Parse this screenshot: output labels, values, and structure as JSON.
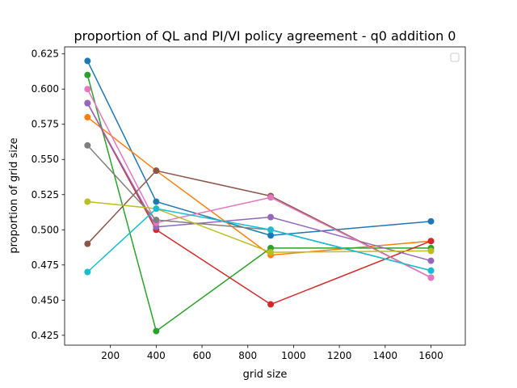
{
  "chart_data": {
    "type": "line",
    "title": "proportion of QL and PI/VI policy agreement - q0 addition 0",
    "xlabel": "grid size",
    "ylabel": "proportion of grid size",
    "x": [
      100,
      400,
      900,
      1600
    ],
    "xlim": [
      0,
      1750
    ],
    "ylim": [
      0.418,
      0.63
    ],
    "xticks": [
      200,
      400,
      600,
      800,
      1000,
      1200,
      1400,
      1600
    ],
    "xtick_labels": [
      "200",
      "400",
      "600",
      "800",
      "1000",
      "1200",
      "1400",
      "1600"
    ],
    "yticks": [
      0.425,
      0.45,
      0.475,
      0.5,
      0.525,
      0.55,
      0.575,
      0.6,
      0.625
    ],
    "ytick_labels": [
      "0.425",
      "0.450",
      "0.475",
      "0.500",
      "0.525",
      "0.550",
      "0.575",
      "0.600",
      "0.625"
    ],
    "grid": false,
    "legend": {
      "placement": "top-right",
      "entries": []
    },
    "series": [
      {
        "color": "#1f77b4",
        "values": [
          0.62,
          0.52,
          0.496,
          0.506
        ]
      },
      {
        "color": "#ff7f0e",
        "values": [
          0.58,
          0.542,
          0.482,
          0.492
        ]
      },
      {
        "color": "#2ca02c",
        "values": [
          0.61,
          0.428,
          0.487,
          0.487
        ]
      },
      {
        "color": "#d62728",
        "values": [
          0.59,
          0.5,
          0.447,
          0.492
        ]
      },
      {
        "color": "#9467bd",
        "values": [
          0.59,
          0.502,
          0.509,
          0.478
        ]
      },
      {
        "color": "#8c564b",
        "values": [
          0.49,
          0.542,
          0.524,
          0.466
        ]
      },
      {
        "color": "#e377c2",
        "values": [
          0.6,
          0.505,
          0.523,
          0.466
        ]
      },
      {
        "color": "#7f7f7f",
        "values": [
          0.56,
          0.507,
          0.5,
          0.471
        ]
      },
      {
        "color": "#bcbd22",
        "values": [
          0.52,
          0.515,
          0.484,
          0.485
        ]
      },
      {
        "color": "#17becf",
        "values": [
          0.47,
          0.515,
          0.5,
          0.471
        ]
      }
    ]
  }
}
